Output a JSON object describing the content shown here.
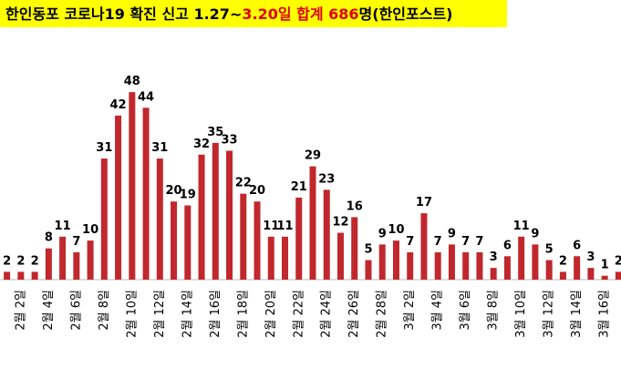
{
  "chart_data": {
    "type": "bar",
    "title_parts": [
      {
        "text": "한인동포 코로나19 확진 신고 1.27~",
        "color": "#000000"
      },
      {
        "text": "3.20일 합계 686",
        "color": "#e00000"
      },
      {
        "text": "명(한인포스트)",
        "color": "#000000"
      }
    ],
    "categories": [
      null,
      "2월 2일",
      null,
      "2월 4일",
      null,
      "2월 6일",
      null,
      "2월 8일",
      null,
      "2월 10일",
      null,
      "2월 12일",
      null,
      "2월 14일",
      null,
      "2월 16일",
      null,
      "2월 18일",
      null,
      "2월 20일",
      null,
      "2월 22일",
      null,
      "2월 24일",
      null,
      "2월 26일",
      null,
      "2월 28일",
      null,
      "3월 2일",
      null,
      "3월 4일",
      null,
      "3월 6일",
      null,
      "3월 8일",
      null,
      "3월 10일",
      null,
      "3월 12일",
      null,
      "3월 14일",
      null,
      "3월 16일",
      null
    ],
    "values": [
      2,
      2,
      2,
      8,
      11,
      7,
      10,
      31,
      42,
      48,
      44,
      31,
      20,
      19,
      32,
      35,
      33,
      22,
      20,
      11,
      11,
      21,
      29,
      23,
      12,
      16,
      5,
      9,
      10,
      7,
      17,
      7,
      9,
      7,
      7,
      3,
      6,
      11,
      9,
      5,
      2,
      6,
      3,
      1,
      2
    ],
    "color": "#c0282d",
    "ylim": [
      0,
      52
    ]
  }
}
